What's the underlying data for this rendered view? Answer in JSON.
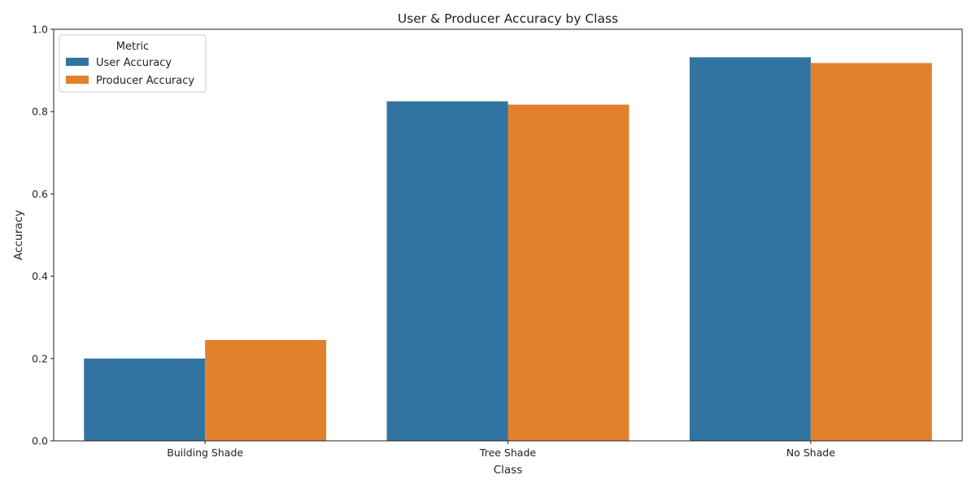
{
  "chart_data": {
    "type": "bar",
    "title": "User & Producer Accuracy by Class",
    "xlabel": "Class",
    "ylabel": "Accuracy",
    "categories": [
      "Building Shade",
      "Tree Shade",
      "No Shade"
    ],
    "series": [
      {
        "name": "User Accuracy",
        "values": [
          0.2,
          0.825,
          0.932
        ],
        "color": "#3274a1"
      },
      {
        "name": "Producer Accuracy",
        "values": [
          0.245,
          0.817,
          0.918
        ],
        "color": "#e1812c"
      }
    ],
    "ylim": [
      0,
      1.0
    ],
    "yticks": [
      "0.0",
      "0.2",
      "0.4",
      "0.6",
      "0.8",
      "1.0"
    ],
    "legend": {
      "title": "Metric",
      "position": "top-left"
    },
    "grid": false
  }
}
